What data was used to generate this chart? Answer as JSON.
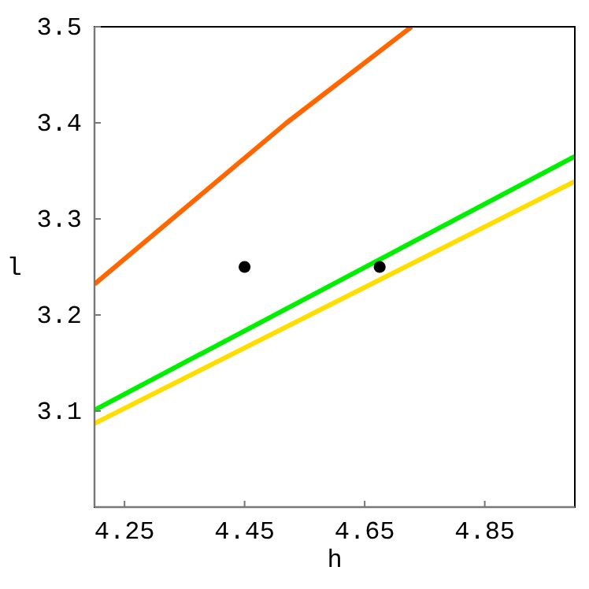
{
  "chart_data": {
    "type": "line",
    "xlabel": "h",
    "ylabel": "l",
    "xlim": [
      4.2,
      5.0
    ],
    "ylim": [
      3.0,
      3.5
    ],
    "xticks": [
      4.25,
      4.45,
      4.65,
      4.85
    ],
    "yticks": [
      3.1,
      3.2,
      3.3,
      3.4,
      3.5
    ],
    "grid": false,
    "series": [
      {
        "color": "#ff6600",
        "x": [
          4.2,
          4.52,
          4.728
        ],
        "values": [
          3.232,
          3.4,
          3.5
        ]
      },
      {
        "color": "#00ee00",
        "x": [
          4.2,
          5.0
        ],
        "values": [
          3.101,
          3.365
        ]
      },
      {
        "color": "#ffdd00",
        "x": [
          4.2,
          5.0
        ],
        "values": [
          3.087,
          3.339
        ]
      },
      {
        "type": "scatter",
        "color": "#000000",
        "marker": "circle",
        "x": [
          4.45,
          4.675
        ],
        "values": [
          3.25,
          3.25
        ]
      }
    ]
  }
}
